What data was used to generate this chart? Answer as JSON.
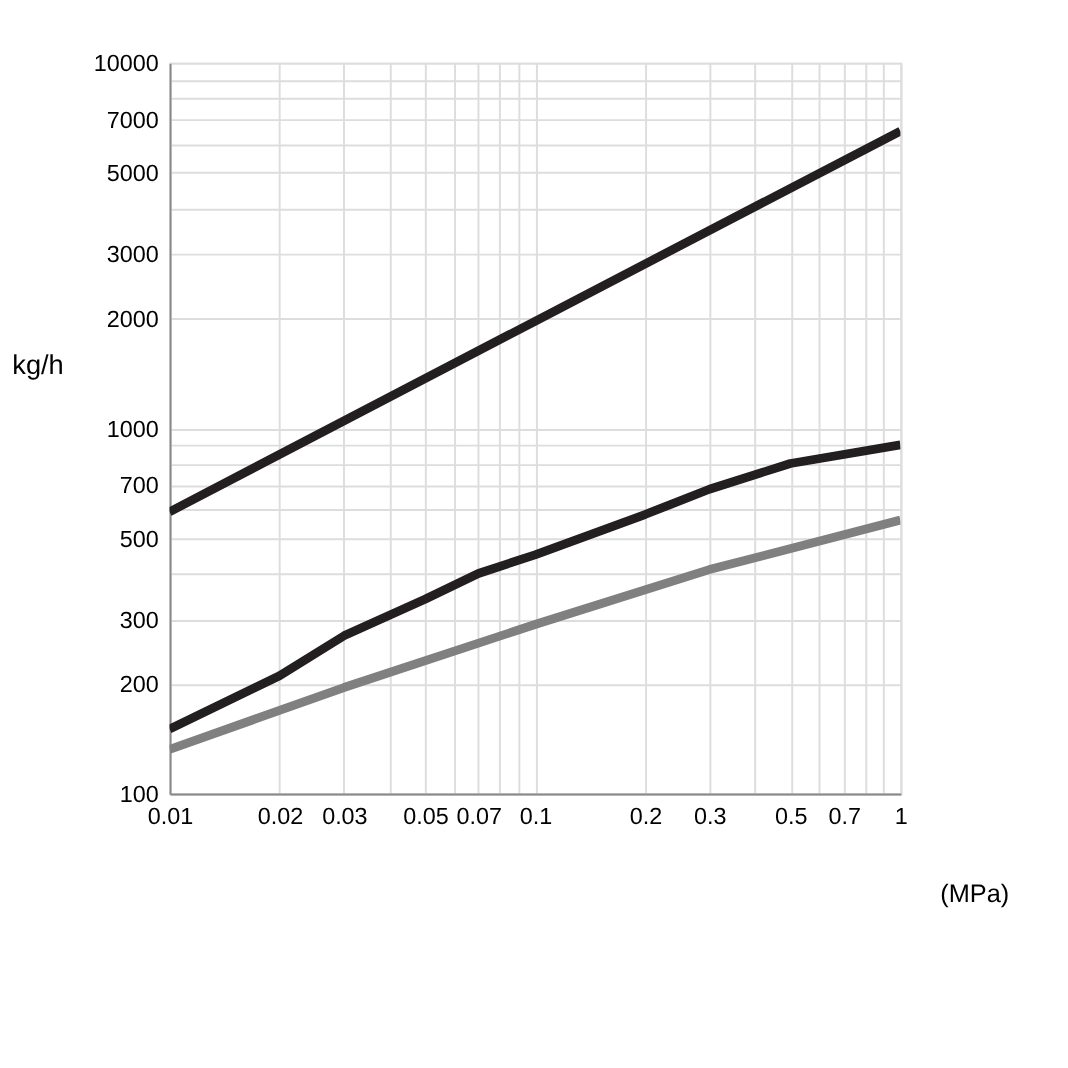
{
  "chart_data": {
    "type": "line",
    "ylabel": "kg/h",
    "xlabel": "(MPa)",
    "log": "xy",
    "grid": true,
    "legend": false,
    "marker": "none",
    "line_style": "solid",
    "xlim": [
      0.01,
      1
    ],
    "ylim": [
      100,
      10000
    ],
    "xticks": [
      0.01,
      0.02,
      0.03,
      {
        "value": 0.04,
        "label": null
      },
      0.05,
      {
        "value": 0.06,
        "label": null
      },
      0.07,
      {
        "value": 0.08,
        "label": null
      },
      {
        "value": 0.09,
        "label": null
      },
      0.1,
      0.2,
      0.3,
      {
        "value": 0.4,
        "label": null
      },
      0.5,
      {
        "value": 0.6,
        "label": null
      },
      0.7,
      {
        "value": 0.8,
        "label": null
      },
      {
        "value": 0.9,
        "label": null
      },
      1
    ],
    "yticks": [
      100,
      200,
      300,
      {
        "value": 400,
        "label": null
      },
      500,
      {
        "value": 600,
        "label": null
      },
      700,
      {
        "value": 800,
        "label": null
      },
      {
        "value": 900,
        "label": null
      },
      1000,
      2000,
      3000,
      {
        "value": 4000,
        "label": null
      },
      5000,
      {
        "value": 6000,
        "label": null
      },
      7000,
      {
        "value": 8000,
        "label": null
      },
      {
        "value": 9000,
        "label": null
      },
      10000
    ],
    "series": [
      {
        "color": "#231f20",
        "x": [
          0.01,
          0.1,
          1
        ],
        "values": [
          590,
          1960,
          6500
        ]
      },
      {
        "color": "#231f20",
        "x": [
          0.01,
          0.02,
          0.03,
          0.05,
          0.07,
          0.1,
          0.2,
          0.3,
          0.5,
          1
        ],
        "values": [
          150,
          210,
          270,
          340,
          400,
          450,
          580,
          680,
          800,
          900
        ]
      },
      {
        "color": "#808080",
        "x": [
          0.01,
          0.03,
          0.1,
          0.3,
          1
        ],
        "values": [
          132,
          195,
          290,
          410,
          560
        ]
      }
    ]
  }
}
